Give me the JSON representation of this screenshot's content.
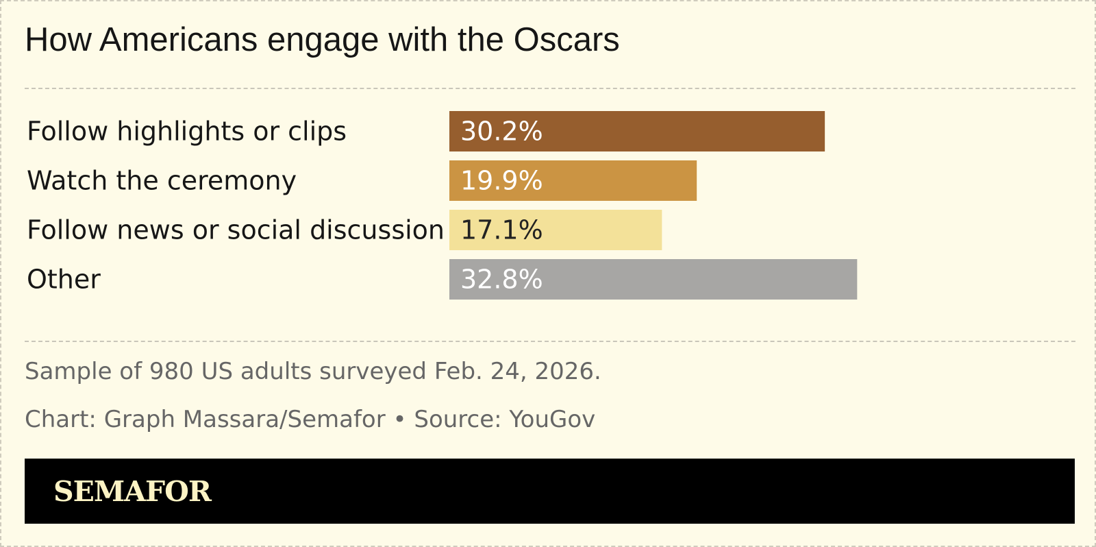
{
  "header": {
    "title": "How Americans engage with the Oscars"
  },
  "chart_data": {
    "type": "bar",
    "orientation": "horizontal",
    "categories": [
      "Follow highlights or clips",
      "Watch the ceremony",
      "Follow news or social discussion",
      "Other"
    ],
    "values": [
      30.2,
      19.9,
      17.1,
      32.8
    ],
    "value_labels": [
      "30.2%",
      "19.9%",
      "17.1%",
      "32.8%"
    ],
    "colors": [
      "#965e2e",
      "#cb9443",
      "#f3e199",
      "#a7a6a4"
    ],
    "label_colors": [
      "#ffffff",
      "#ffffff",
      "#222222",
      "#ffffff"
    ],
    "unit": "%",
    "grid": false,
    "legend": "none"
  },
  "notes": {
    "sample": "Sample of 980 US adults surveyed Feb. 24, 2026.",
    "credit": "Chart: Graph Massara/Semafor • Source: YouGov"
  },
  "brand": {
    "logo_text": "SEMAFOR"
  }
}
